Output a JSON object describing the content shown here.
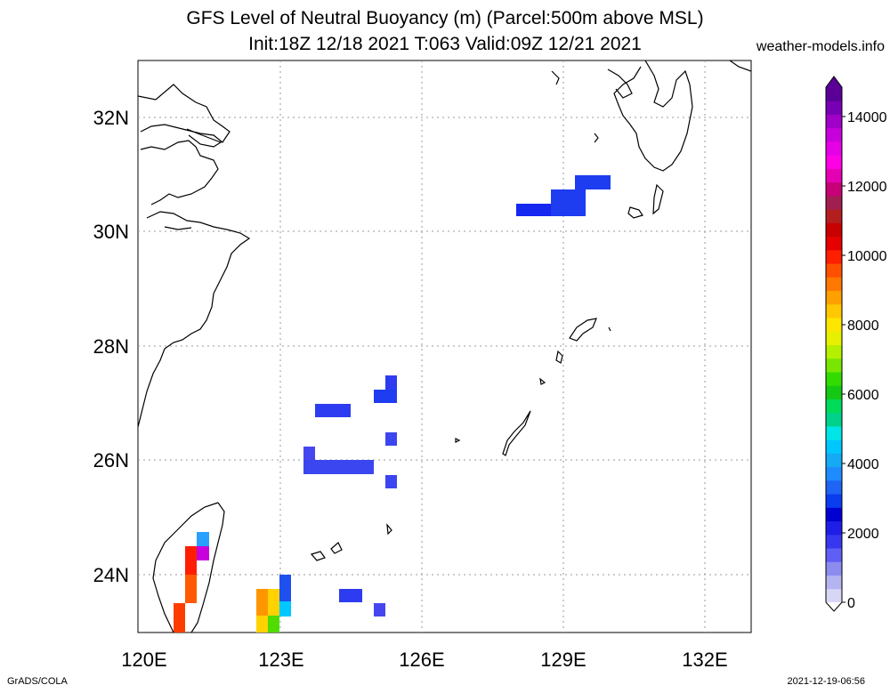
{
  "title_line1": "GFS Level of Neutral Buoyancy (m) (Parcel:500m above MSL)",
  "title_line2": "Init:18Z 12/18 2021 T:063 Valid:09Z 12/21 2021",
  "site": "weather-models.info",
  "footer_left": "GrADS/COLA",
  "footer_right": "2021-12-19-06:56",
  "map": {
    "lon_range": [
      120,
      133
    ],
    "lat_range": [
      23,
      33
    ],
    "lon_ticks": [
      "120E",
      "123E",
      "126E",
      "129E",
      "132E"
    ],
    "lat_ticks": [
      "24N",
      "26N",
      "28N",
      "30N",
      "32N"
    ],
    "grid": "dotted"
  },
  "colorbar": {
    "ticks": [
      "0",
      "2000",
      "4000",
      "6000",
      "8000",
      "10000",
      "12000",
      "14000"
    ],
    "colors": [
      "#d7d7f5",
      "#b4b4f0",
      "#8c8cf0",
      "#5f5ff5",
      "#3737f0",
      "#1e1ee6",
      "#0000d2",
      "#0a3cf0",
      "#1e64f5",
      "#1e8cff",
      "#14aaf5",
      "#00c8ff",
      "#00e6e6",
      "#00d28c",
      "#00dc5a",
      "#14c814",
      "#32dc00",
      "#78e600",
      "#b4f000",
      "#e6f000",
      "#ffe600",
      "#ffc800",
      "#ffa000",
      "#ff7800",
      "#ff5000",
      "#ff1e00",
      "#e60000",
      "#c80000",
      "#b41e1e",
      "#a01e50",
      "#c80078",
      "#e600b4",
      "#ff00e6",
      "#e600e6",
      "#c800dc",
      "#a000c8",
      "#7800b4",
      "#5a0096"
    ]
  },
  "colors": {
    "blue": "#1e3cf0",
    "blue_dark": "#1428e6",
    "blue_light": "#4b4bf0"
  }
}
